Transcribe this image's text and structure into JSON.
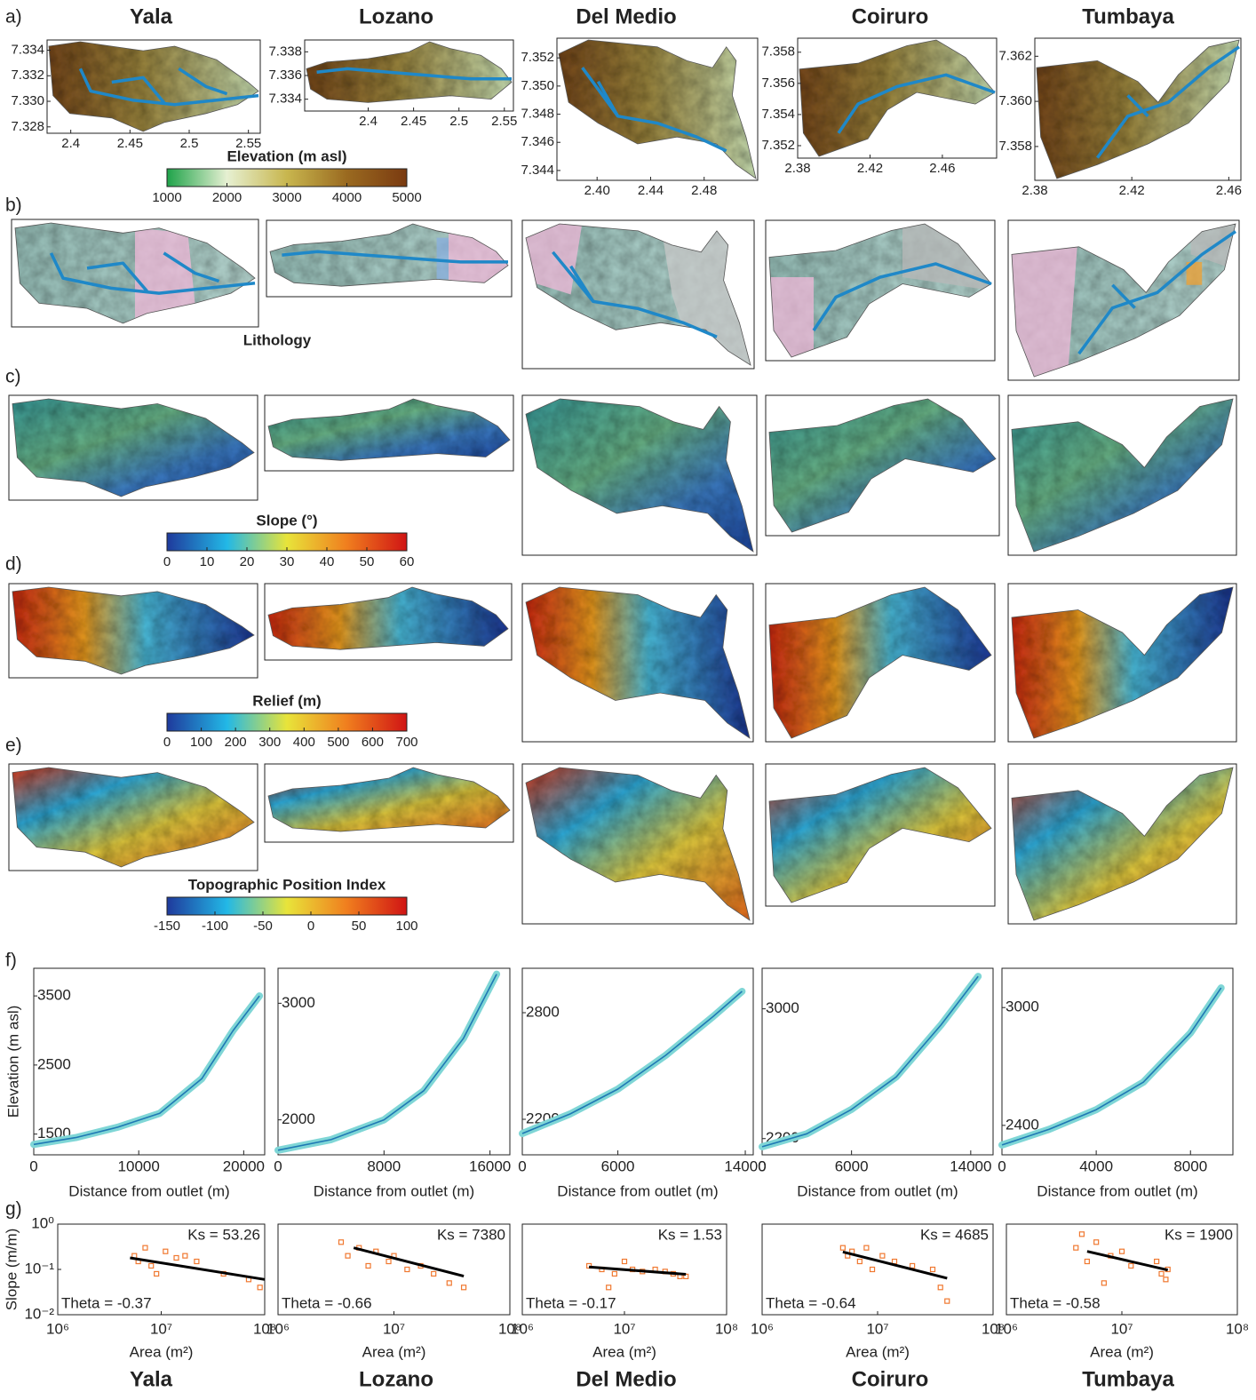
{
  "basins": [
    "Yala",
    "Lozano",
    "Del Medio",
    "Coiruro",
    "Tumbaya"
  ],
  "panel_labels": [
    "a)",
    "b)",
    "c)",
    "d)",
    "e)",
    "f)",
    "g)"
  ],
  "lithology_label": "Lithology",
  "elevation_maps": [
    {
      "xlim": [
        2.38,
        2.56
      ],
      "ylim": [
        7.3275,
        7.3348
      ],
      "xticks": [
        2.4,
        2.45,
        2.5,
        2.55
      ],
      "yticks": [
        7.328,
        {
          "value": 7.33,
          "label": "7.330"
        },
        7.332,
        7.334
      ]
    },
    {
      "xlim": [
        2.33,
        2.56
      ],
      "ylim": [
        7.333,
        7.339
      ],
      "xticks": [
        2.4,
        2.45,
        2.5,
        2.55
      ],
      "yticks": [
        7.334,
        7.336,
        7.338
      ]
    },
    {
      "xlim": [
        2.37,
        2.52
      ],
      "ylim": [
        7.3433,
        7.3534
      ],
      "xticks": [
        {
          "value": 2.4,
          "label": "2.40"
        },
        {
          "value": 2.44,
          "label": "2.44"
        },
        {
          "value": 2.48,
          "label": "2.48"
        }
      ],
      "yticks": [
        7.344,
        7.346,
        7.348,
        {
          "value": 7.35,
          "label": "7.350"
        },
        7.352
      ]
    },
    {
      "xlim": [
        2.38,
        2.49
      ],
      "ylim": [
        7.3512,
        7.3589
      ],
      "xticks": [
        2.38,
        2.42,
        2.46
      ],
      "yticks": [
        7.352,
        7.354,
        7.356,
        7.358
      ]
    },
    {
      "xlim": [
        2.38,
        2.465
      ],
      "ylim": [
        7.3565,
        7.3628
      ],
      "xticks": [
        2.38,
        2.42,
        2.46
      ],
      "yticks": [
        7.358,
        {
          "value": 7.36,
          "label": "7.360"
        },
        7.362
      ]
    }
  ],
  "colorbars": [
    {
      "title": "Elevation (m asl)",
      "colors": [
        "#1fa34a",
        "#e6f0d2",
        "#c8b64e",
        "#9a6a20",
        "#7a3a10"
      ],
      "lim": [
        1000,
        5000
      ],
      "ticks": [
        1000,
        2000,
        3000,
        4000,
        5000
      ]
    },
    {
      "title": "Slope (°)",
      "colors": [
        "#1f3a9c",
        "#22b8e6",
        "#e8e43a",
        "#f07e1e",
        "#d01414"
      ],
      "lim": [
        0,
        60
      ],
      "ticks": [
        0,
        10,
        20,
        30,
        40,
        50,
        60
      ]
    },
    {
      "title": "Relief (m)",
      "colors": [
        "#1f3a9c",
        "#22b8e6",
        "#e8e43a",
        "#f07e1e",
        "#d01414"
      ],
      "lim": [
        0,
        700
      ],
      "ticks": [
        0,
        100,
        200,
        300,
        400,
        500,
        600,
        700
      ]
    },
    {
      "title": "Topographic Position Index",
      "colors": [
        "#1f3a9c",
        "#22b8e6",
        "#e8e43a",
        "#f07e1e",
        "#d01414"
      ],
      "lim": [
        -150,
        100
      ],
      "ticks": [
        -150,
        -100,
        -50,
        0,
        50,
        100
      ]
    }
  ],
  "chart_data": [
    {
      "type": "line",
      "xlabel": "Distance from outlet (m)",
      "ylabel": "Elevation (m asl)",
      "x": [
        0,
        4000,
        8000,
        12000,
        16000,
        19000,
        21500
      ],
      "series": [
        {
          "color": "#7fd6d6",
          "values": [
            1350,
            1450,
            1600,
            1800,
            2300,
            3000,
            3500
          ]
        }
      ],
      "xlim": [
        0,
        22000
      ],
      "ylim": [
        1200,
        3900
      ],
      "xticks": [
        0,
        10000,
        20000
      ],
      "yticks": [
        1500,
        2500,
        3500
      ]
    },
    {
      "type": "line",
      "xlabel": "Distance from outlet (m)",
      "x": [
        0,
        4000,
        8000,
        11000,
        14000,
        16500
      ],
      "series": [
        {
          "color": "#7fd6d6",
          "values": [
            1740,
            1830,
            2000,
            2250,
            2700,
            3250
          ]
        }
      ],
      "xlim": [
        0,
        17500
      ],
      "ylim": [
        1700,
        3300
      ],
      "xticks": [
        0,
        8000,
        16000
      ],
      "yticks": [
        2000,
        3000
      ]
    },
    {
      "type": "line",
      "xlabel": "Distance from outlet (m)",
      "x": [
        0,
        3000,
        6000,
        9000,
        12000,
        13800
      ],
      "series": [
        {
          "color": "#7fd6d6",
          "values": [
            2120,
            2230,
            2370,
            2560,
            2780,
            2920
          ]
        }
      ],
      "xlim": [
        0,
        14500
      ],
      "ylim": [
        2000,
        3050
      ],
      "xticks": [
        0,
        6000,
        14000
      ],
      "yticks": [
        2200,
        2800
      ]
    },
    {
      "type": "line",
      "xlabel": "Distance from outlet (m)",
      "x": [
        0,
        3000,
        6000,
        9000,
        12000,
        14500
      ],
      "series": [
        {
          "color": "#7fd6d6",
          "values": [
            2150,
            2230,
            2380,
            2580,
            2900,
            3200
          ]
        }
      ],
      "xlim": [
        0,
        15500
      ],
      "ylim": [
        2100,
        3250
      ],
      "xticks": [
        0,
        6000,
        14000
      ],
      "yticks": [
        2200,
        3000
      ]
    },
    {
      "type": "line",
      "xlabel": "Distance from outlet (m)",
      "x": [
        0,
        2000,
        4000,
        6000,
        8000,
        9300
      ],
      "series": [
        {
          "color": "#7fd6d6",
          "values": [
            2300,
            2380,
            2480,
            2620,
            2870,
            3100
          ]
        }
      ],
      "xlim": [
        0,
        9800
      ],
      "ylim": [
        2250,
        3200
      ],
      "xticks": [
        0,
        4000,
        8000
      ],
      "yticks": [
        2400,
        3000
      ]
    },
    {
      "type": "scatter",
      "xlabel": "Area (m²)",
      "ylabel": "Slope (m/m)",
      "log_x": true,
      "log_y": true,
      "xlim": [
        1000000,
        100000000
      ],
      "ylim": [
        0.01,
        1
      ],
      "xticks": [
        {
          "value": 1000000,
          "label": "10⁶"
        },
        {
          "value": 10000000,
          "label": "10⁷"
        },
        {
          "value": 100000000,
          "label": "10⁸"
        }
      ],
      "yticks": [
        {
          "value": 1,
          "label": "10⁰"
        },
        {
          "value": 0.1,
          "label": "10⁻¹"
        },
        {
          "value": 0.01,
          "label": "10⁻²"
        }
      ],
      "annotations": [
        "Ks = 53.26",
        "Theta = -0.37"
      ],
      "series": [
        {
          "color": "#f07830",
          "x": [
            5500000,
            6000000,
            7000000,
            8000000,
            9000000,
            11000000,
            14000000,
            17000000,
            22000000,
            40000000,
            70000000,
            90000000
          ],
          "values": [
            0.2,
            0.15,
            0.3,
            0.12,
            0.08,
            0.25,
            0.18,
            0.2,
            0.15,
            0.08,
            0.06,
            0.04
          ]
        },
        {
          "color": "#000000",
          "line": true,
          "x": [
            5000000,
            100000000
          ],
          "values": [
            0.18,
            0.06
          ]
        }
      ]
    },
    {
      "type": "scatter",
      "xlabel": "Area (m²)",
      "log_x": true,
      "log_y": true,
      "xlim": [
        1000000,
        100000000
      ],
      "ylim": [
        0.01,
        1
      ],
      "xticks": [
        {
          "value": 1000000,
          "label": "10⁶"
        },
        {
          "value": 10000000,
          "label": "10⁷"
        },
        {
          "value": 100000000,
          "label": "10⁸"
        }
      ],
      "annotations": [
        "Ks = 7380",
        "Theta = -0.66"
      ],
      "series": [
        {
          "color": "#f07830",
          "x": [
            3500000,
            4000000,
            5000000,
            6000000,
            7000000,
            9000000,
            10000000,
            13000000,
            17000000,
            22000000,
            30000000,
            40000000
          ],
          "values": [
            0.4,
            0.2,
            0.3,
            0.12,
            0.25,
            0.15,
            0.2,
            0.1,
            0.12,
            0.08,
            0.05,
            0.04
          ]
        },
        {
          "color": "#000000",
          "line": true,
          "x": [
            4500000,
            40000000
          ],
          "values": [
            0.3,
            0.071
          ]
        }
      ]
    },
    {
      "type": "scatter",
      "xlabel": "Area (m²)",
      "log_x": true,
      "log_y": true,
      "xlim": [
        1000000,
        100000000
      ],
      "ylim": [
        0.01,
        1
      ],
      "xticks": [
        {
          "value": 1000000,
          "label": "10⁶"
        },
        {
          "value": 10000000,
          "label": "10⁷"
        },
        {
          "value": 100000000,
          "label": "10⁸"
        }
      ],
      "annotations": [
        "Ks = 1.53",
        "Theta = -0.17"
      ],
      "series": [
        {
          "color": "#f07830",
          "x": [
            4500000,
            6000000,
            7000000,
            8000000,
            10000000,
            12000000,
            15000000,
            20000000,
            25000000,
            30000000,
            35000000,
            40000000
          ],
          "values": [
            0.12,
            0.1,
            0.04,
            0.08,
            0.15,
            0.1,
            0.09,
            0.1,
            0.09,
            0.08,
            0.07,
            0.07
          ]
        },
        {
          "color": "#000000",
          "line": true,
          "x": [
            4500000,
            40000000
          ],
          "values": [
            0.113,
            0.078
          ]
        }
      ]
    },
    {
      "type": "scatter",
      "xlabel": "Area (m²)",
      "log_x": true,
      "log_y": true,
      "xlim": [
        1000000,
        100000000
      ],
      "ylim": [
        0.01,
        1
      ],
      "xticks": [
        {
          "value": 1000000,
          "label": "10⁶"
        },
        {
          "value": 10000000,
          "label": "10⁷"
        },
        {
          "value": 100000000,
          "label": "10⁸"
        }
      ],
      "annotations": [
        "Ks = 4685",
        "Theta = -0.64"
      ],
      "series": [
        {
          "color": "#f07830",
          "x": [
            5000000,
            5500000,
            6000000,
            7000000,
            8000000,
            9000000,
            11000000,
            14000000,
            20000000,
            30000000,
            35000000,
            40000000
          ],
          "values": [
            0.3,
            0.2,
            0.25,
            0.15,
            0.3,
            0.1,
            0.2,
            0.15,
            0.12,
            0.1,
            0.04,
            0.02
          ]
        },
        {
          "color": "#000000",
          "line": true,
          "x": [
            5000000,
            40000000
          ],
          "values": [
            0.243,
            0.064
          ]
        }
      ]
    },
    {
      "type": "scatter",
      "xlabel": "Area (m²)",
      "log_x": true,
      "log_y": true,
      "xlim": [
        1000000,
        100000000
      ],
      "ylim": [
        0.01,
        1
      ],
      "xticks": [
        {
          "value": 1000000,
          "label": "10⁶"
        },
        {
          "value": 10000000,
          "label": "10⁷"
        },
        {
          "value": 100000000,
          "label": "10⁸"
        }
      ],
      "annotations": [
        "Ks = 1900",
        "Theta = -0.58"
      ],
      "series": [
        {
          "color": "#f07830",
          "x": [
            4000000,
            4500000,
            5000000,
            6000000,
            7000000,
            8000000,
            10000000,
            12000000,
            20000000,
            22000000,
            24000000,
            25000000
          ],
          "values": [
            0.3,
            0.6,
            0.15,
            0.4,
            0.05,
            0.2,
            0.25,
            0.12,
            0.15,
            0.08,
            0.06,
            0.1
          ]
        },
        {
          "color": "#000000",
          "line": true,
          "x": [
            5000000,
            25000000
          ],
          "values": [
            0.25,
            0.097
          ]
        }
      ]
    }
  ]
}
